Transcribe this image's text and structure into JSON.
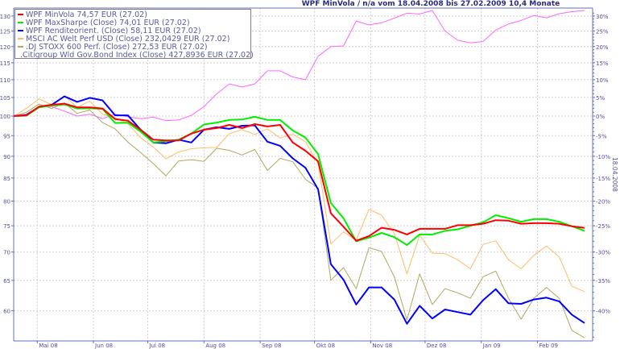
{
  "chart_data": {
    "type": "line",
    "title": "WPF MinVola / n/a vom 18.04.2008 bis 27.02.2009 10,4 Monate",
    "right_axis_label": "18.04.2008",
    "y_scale": "log",
    "ylim": [
      55,
      132
    ],
    "yticks_left": [
      "60",
      "65",
      "70",
      "75",
      "80",
      "85",
      "90",
      "95",
      "100",
      "105",
      "110",
      "115",
      "120",
      "125",
      "130"
    ],
    "yticks_right": [
      "-40%",
      "-35%",
      "-30%",
      "-25%",
      "-20%",
      "-15%",
      "-10%",
      "-5%",
      "0%",
      "5%",
      "10%",
      "15%",
      "20%",
      "25%",
      "30%"
    ],
    "xticks": [
      {
        "label": "Mai 08",
        "date": "2008-05-01"
      },
      {
        "label": "Jun 08",
        "date": "2008-06-01"
      },
      {
        "label": "Jul 08",
        "date": "2008-07-01"
      },
      {
        "label": "Aug 08",
        "date": "2008-08-01"
      },
      {
        "label": "Sep 08",
        "date": "2008-09-01"
      },
      {
        "label": "Okt 08",
        "date": "2008-10-01"
      },
      {
        "label": "Nov 08",
        "date": "2008-11-01"
      },
      {
        "label": "Dez 08",
        "date": "2008-12-01"
      },
      {
        "label": "Jan 09",
        "date": "2009-01-01"
      },
      {
        "label": "Feb 09",
        "date": "2009-02-01"
      }
    ],
    "grid": true,
    "legend_placement": "top-left",
    "x": [
      "2008-04-18",
      "2008-04-25",
      "2008-05-02",
      "2008-05-09",
      "2008-05-16",
      "2008-05-23",
      "2008-05-30",
      "2008-06-06",
      "2008-06-13",
      "2008-06-20",
      "2008-06-27",
      "2008-07-04",
      "2008-07-11",
      "2008-07-18",
      "2008-07-25",
      "2008-08-01",
      "2008-08-08",
      "2008-08-15",
      "2008-08-22",
      "2008-08-29",
      "2008-09-05",
      "2008-09-12",
      "2008-09-19",
      "2008-09-26",
      "2008-10-03",
      "2008-10-10",
      "2008-10-17",
      "2008-10-24",
      "2008-10-31",
      "2008-11-07",
      "2008-11-14",
      "2008-11-21",
      "2008-11-28",
      "2008-12-05",
      "2008-12-12",
      "2008-12-19",
      "2008-12-26",
      "2009-01-02",
      "2009-01-09",
      "2009-01-16",
      "2009-01-23",
      "2009-01-30",
      "2009-02-06",
      "2009-02-13",
      "2009-02-20",
      "2009-02-27"
    ],
    "series": [
      {
        "name": "WPF MinVola 74,57 EUR (27.02)",
        "color": "#ff0000",
        "width": 2,
        "values": [
          100,
          100.2,
          102.5,
          103,
          103.3,
          102.3,
          102.3,
          102,
          99.2,
          98.8,
          96.5,
          94,
          93.8,
          93.8,
          95.5,
          96.5,
          96.9,
          97.7,
          96.9,
          97.9,
          97.3,
          97.7,
          93.3,
          91.3,
          88.8,
          77.5,
          74.8,
          72.1,
          73,
          74.6,
          74.2,
          73.3,
          74.4,
          74.4,
          74.4,
          75.1,
          75.1,
          75.4,
          76.1,
          76,
          75.4,
          75.5,
          75.5,
          75.4,
          74.9,
          74.57
        ]
      },
      {
        "name": "WPF MaxSharpe (Close) 74,01 EUR (27.02)",
        "color": "#00ee00",
        "width": 2,
        "values": [
          100,
          100.1,
          102.3,
          102.8,
          103.1,
          102,
          102.1,
          101.9,
          98.2,
          98.3,
          96,
          93.3,
          93.6,
          94,
          95.5,
          97.8,
          98.3,
          99,
          99.1,
          99.8,
          99,
          99,
          96.3,
          94.5,
          90.5,
          79.6,
          76.5,
          72,
          72.7,
          73.6,
          72.8,
          71.3,
          73.3,
          73.3,
          74,
          74.3,
          75,
          75.7,
          77.1,
          76.5,
          75.8,
          76.3,
          76.3,
          75.8,
          74.9,
          74.01
        ]
      },
      {
        "name": "WPF Renditeorient. (Close) 58,11 EUR (27.02)",
        "color": "#0000ff",
        "width": 2,
        "values": [
          100,
          100.3,
          102.4,
          103,
          105.3,
          103.8,
          104.9,
          104.2,
          100.2,
          100.2,
          96.5,
          93.3,
          93.1,
          94,
          93.3,
          96.5,
          97.1,
          96.7,
          97.5,
          97.6,
          93.5,
          92.5,
          89.5,
          87.3,
          82.5,
          67.8,
          65.1,
          61,
          63.8,
          63.8,
          61.8,
          58,
          60.8,
          58.8,
          60.2,
          59.8,
          59.4,
          61.7,
          63.5,
          61.2,
          61.1,
          61.8,
          62.1,
          61.5,
          59.4,
          58.11
        ]
      },
      {
        "name": "MSCI AC Welt Perf USD (Close) 232,0429 EUR (27.02)",
        "color": "#ffbb66",
        "width": 1,
        "values": [
          100,
          102,
          104.6,
          103,
          105.5,
          102.3,
          104,
          100.5,
          99.5,
          98,
          94.5,
          92.2,
          89.4,
          91,
          91.8,
          92,
          92.1,
          95.5,
          96.5,
          95.3,
          96.7,
          94.4,
          95.4,
          93.5,
          88.3,
          71.5,
          73.8,
          72.2,
          78.3,
          77.1,
          73.5,
          66.1,
          73.2,
          69.8,
          69.7,
          68.6,
          67,
          71.4,
          72.1,
          68.6,
          67,
          69.4,
          71.1,
          69.1,
          64,
          63.1
        ]
      },
      {
        "name": ".DJ STOXX 600 Perf. (Close) 272,53 EUR (27.02)",
        "color": "#b0a860",
        "width": 1,
        "values": [
          100,
          101,
          103.2,
          102,
          103.5,
          100.7,
          101.6,
          98.3,
          96.7,
          93.4,
          90.9,
          88.3,
          85.5,
          88.9,
          89.2,
          88.8,
          91.9,
          91.4,
          90.3,
          91.6,
          86.7,
          89.5,
          88.7,
          84.7,
          82.8,
          65,
          67.2,
          63.6,
          70.8,
          70.1,
          65.6,
          58.6,
          66.1,
          61,
          63.6,
          62.9,
          62,
          65.6,
          66.6,
          62,
          58.7,
          62,
          63.8,
          62,
          57,
          55.9
        ]
      },
      {
        "name": ".Citigroup Wld Gov.Bond Index (Close) 427,8936 EUR (27.02)",
        "color": "#ff66ff",
        "width": 1,
        "values": [
          100,
          100.5,
          102.5,
          102.5,
          101.3,
          100,
          100.5,
          99.3,
          100.5,
          99.8,
          99.3,
          99.7,
          98.8,
          99,
          100.2,
          102.5,
          106,
          108.8,
          107.9,
          108.8,
          112.6,
          112.6,
          110.8,
          110,
          117,
          120,
          120.2,
          128.3,
          127,
          127.7,
          129.3,
          131,
          130.7,
          131.9,
          125,
          122,
          121.2,
          121.6,
          125.3,
          127.3,
          128.5,
          130.2,
          129.4,
          130.8,
          131.5,
          131.9
        ]
      }
    ]
  }
}
